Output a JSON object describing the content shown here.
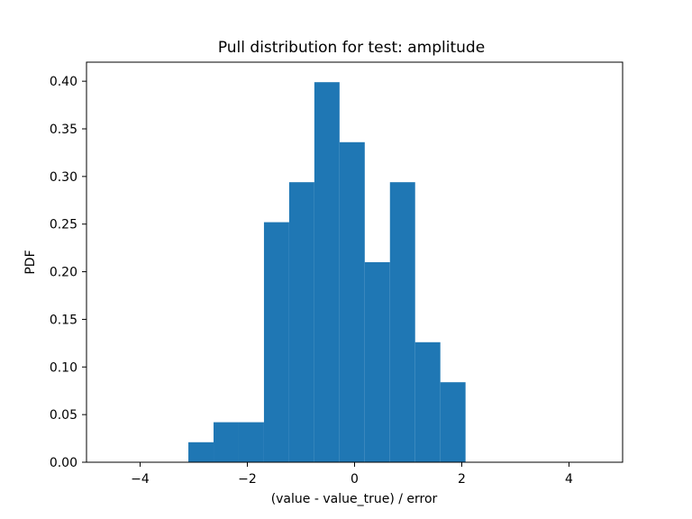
{
  "chart_data": {
    "type": "bar",
    "title": "Pull distribution for test: amplitude",
    "xlabel": "(value - value_true) / error",
    "ylabel": "PDF",
    "xlim": [
      -5,
      5
    ],
    "ylim": [
      0,
      0.42
    ],
    "grid": false,
    "color": "#1f77b4",
    "bins": [
      {
        "x0": -3.1,
        "x1": -2.63,
        "value": 0.021
      },
      {
        "x0": -2.63,
        "x1": -2.16,
        "value": 0.042
      },
      {
        "x0": -2.16,
        "x1": -1.69,
        "value": 0.042
      },
      {
        "x0": -1.69,
        "x1": -1.22,
        "value": 0.252
      },
      {
        "x0": -1.22,
        "x1": -0.75,
        "value": 0.294
      },
      {
        "x0": -0.75,
        "x1": -0.28,
        "value": 0.399
      },
      {
        "x0": -0.28,
        "x1": 0.19,
        "value": 0.336
      },
      {
        "x0": 0.19,
        "x1": 0.66,
        "value": 0.21
      },
      {
        "x0": 0.66,
        "x1": 1.13,
        "value": 0.294
      },
      {
        "x0": 1.13,
        "x1": 1.6,
        "value": 0.126
      },
      {
        "x0": 1.6,
        "x1": 2.07,
        "value": 0.084
      }
    ],
    "xticks": [
      {
        "value": -4,
        "label": "−4"
      },
      {
        "value": -2,
        "label": "−2"
      },
      {
        "value": 0,
        "label": "0"
      },
      {
        "value": 2,
        "label": "2"
      },
      {
        "value": 4,
        "label": "4"
      }
    ],
    "yticks": [
      {
        "value": 0.0,
        "label": "0.00"
      },
      {
        "value": 0.05,
        "label": "0.05"
      },
      {
        "value": 0.1,
        "label": "0.10"
      },
      {
        "value": 0.15,
        "label": "0.15"
      },
      {
        "value": 0.2,
        "label": "0.20"
      },
      {
        "value": 0.25,
        "label": "0.25"
      },
      {
        "value": 0.3,
        "label": "0.30"
      },
      {
        "value": 0.35,
        "label": "0.35"
      },
      {
        "value": 0.4,
        "label": "0.40"
      }
    ]
  }
}
